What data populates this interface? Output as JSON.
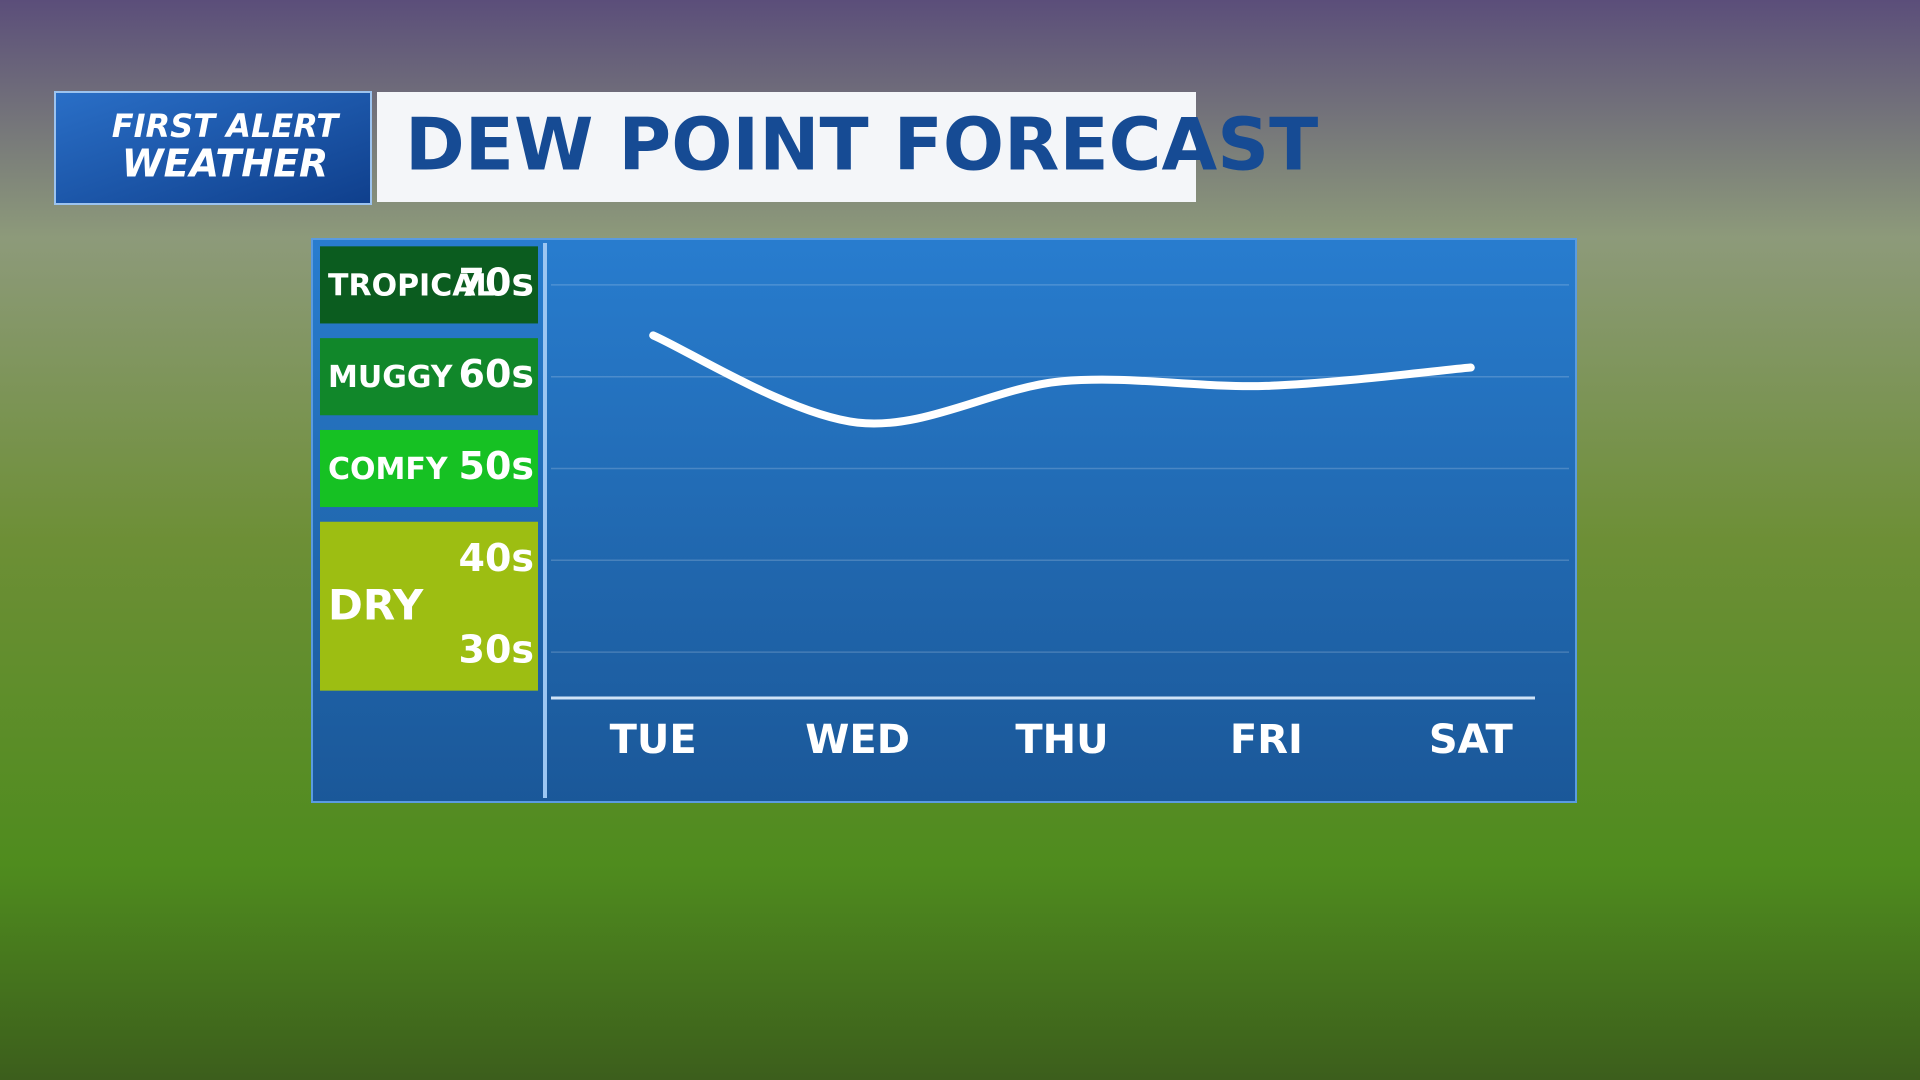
{
  "logo": {
    "line1": "FIRST ALERT",
    "line2": "WEATHER"
  },
  "chart_data": {
    "type": "line",
    "title": "DEW POINT FORECAST",
    "categories": [
      "TUE",
      "WED",
      "THU",
      "FRI",
      "SAT"
    ],
    "values": [
      69.5,
      60,
      64.5,
      64,
      66
    ],
    "color": "#ffffff",
    "ylim": [
      30,
      80
    ],
    "grid": true,
    "bands": [
      {
        "name": "TROPICAL",
        "color": "#0b5c1f",
        "labels": [
          {
            "value": 75,
            "label": "70s"
          }
        ]
      },
      {
        "name": "MUGGY",
        "color": "#11872a",
        "labels": [
          {
            "value": 65,
            "label": "60s"
          }
        ]
      },
      {
        "name": "COMFY",
        "color": "#16c123",
        "labels": [
          {
            "value": 55,
            "label": "50s"
          }
        ]
      },
      {
        "name": "DRY",
        "color": "#9dbe12",
        "labels": [
          {
            "value": 45,
            "label": "40s"
          },
          {
            "value": 35,
            "label": "30s"
          }
        ]
      }
    ]
  }
}
